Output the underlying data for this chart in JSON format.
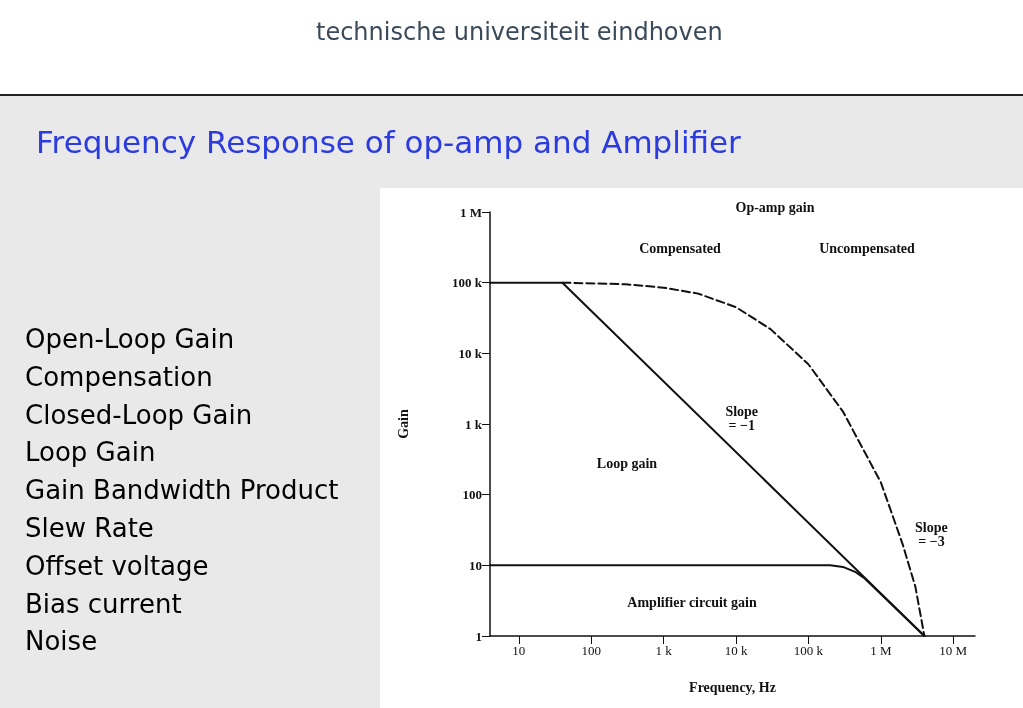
{
  "chart_data": {
    "type": "line",
    "title": "Frequency Response of op-amp and Amplifier",
    "xlabel": "Frequency, Hz",
    "ylabel": "Gain",
    "log": "xy",
    "grid": false,
    "marker": "none",
    "xlim": [
      4,
      20000000
    ],
    "xticks": [
      {
        "value": 10,
        "label": "10"
      },
      {
        "value": 100,
        "label": "100"
      },
      {
        "value": 1000,
        "label": "1 k"
      },
      {
        "value": 10000,
        "label": "10 k"
      },
      {
        "value": 100000,
        "label": "100 k"
      },
      {
        "value": 1000000,
        "label": "1 M"
      },
      {
        "value": 10000000,
        "label": "10 M"
      }
    ],
    "ylim": [
      1,
      1000000
    ],
    "yticks": [
      {
        "value": 1,
        "label": "1"
      },
      {
        "value": 10,
        "label": "10"
      },
      {
        "value": 100,
        "label": "100"
      },
      {
        "value": 1000,
        "label": "1 k"
      },
      {
        "value": 10000,
        "label": "10 k"
      },
      {
        "value": 100000,
        "label": "100 k"
      },
      {
        "value": 1000000,
        "label": "1 M"
      }
    ],
    "series": [
      {
        "color": "#111111",
        "line_style": "solid",
        "x": [
          4,
          40,
          4000000
        ],
        "values": [
          100000,
          100000,
          1
        ]
      },
      {
        "color": "#111111",
        "line_style": "dashed",
        "x": [
          40,
          300,
          1000,
          3000,
          10000,
          30000,
          100000,
          300000,
          1000000,
          2000000,
          3000000,
          4000000
        ],
        "values": [
          100000,
          95000,
          85000,
          70000,
          45000,
          22000,
          7000,
          1500,
          150,
          20,
          5,
          1
        ]
      },
      {
        "color": "#111111",
        "line_style": "solid",
        "x": [
          4,
          200000,
          300000,
          450000,
          600000,
          4000000
        ],
        "values": [
          10,
          10,
          9.5,
          8,
          6.5,
          1
        ]
      }
    ],
    "annotations": [
      "technische universiteit eindhoven",
      "Open-Loop Gain",
      "Compensation",
      "Closed-Loop Gain",
      "Loop Gain",
      "Gain Bandwidth Product",
      "Slew Rate",
      "Offset voltage",
      "Bias current",
      "Noise",
      "Op-amp gain",
      "Compensated",
      "Uncompensated",
      "Loop gain",
      "Amplifier circuit gain",
      {
        "text": "Slope\n= −1",
        "x": 12000,
        "y": 1200
      },
      {
        "text": "Slope\n= −3",
        "x": 5000000,
        "y": 27
      }
    ]
  }
}
